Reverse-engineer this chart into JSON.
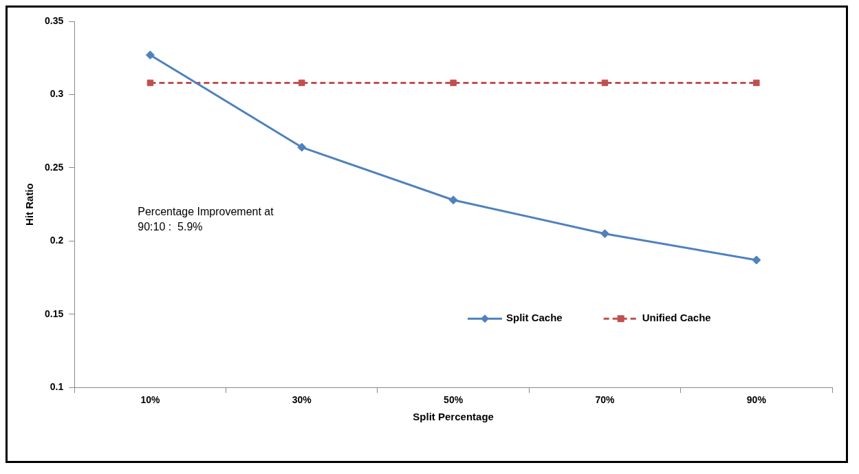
{
  "chart_data": {
    "type": "line",
    "xlabel": "Split Percentage",
    "ylabel": "Hit Ratio",
    "categories": [
      "10%",
      "30%",
      "50%",
      "70%",
      "90%"
    ],
    "series": [
      {
        "name": "Split Cache",
        "color": "#4f81bd",
        "values": [
          0.327,
          0.264,
          0.228,
          0.205,
          0.187
        ],
        "marker": "diamond",
        "line_style": "solid"
      },
      {
        "name": "Unified Cache",
        "color": "#c0504d",
        "values": [
          0.308,
          0.308,
          0.308,
          0.308,
          0.308
        ],
        "marker": "square",
        "line_style": "dashed"
      }
    ],
    "ylim": [
      0.1,
      0.35
    ],
    "yticks": [
      0.1,
      0.15,
      0.2,
      0.25,
      0.3,
      0.35
    ],
    "grid": false,
    "legend": "bottom right",
    "annotations": [
      "Percentage Improvement at\n90:10 :  5.9%"
    ]
  }
}
